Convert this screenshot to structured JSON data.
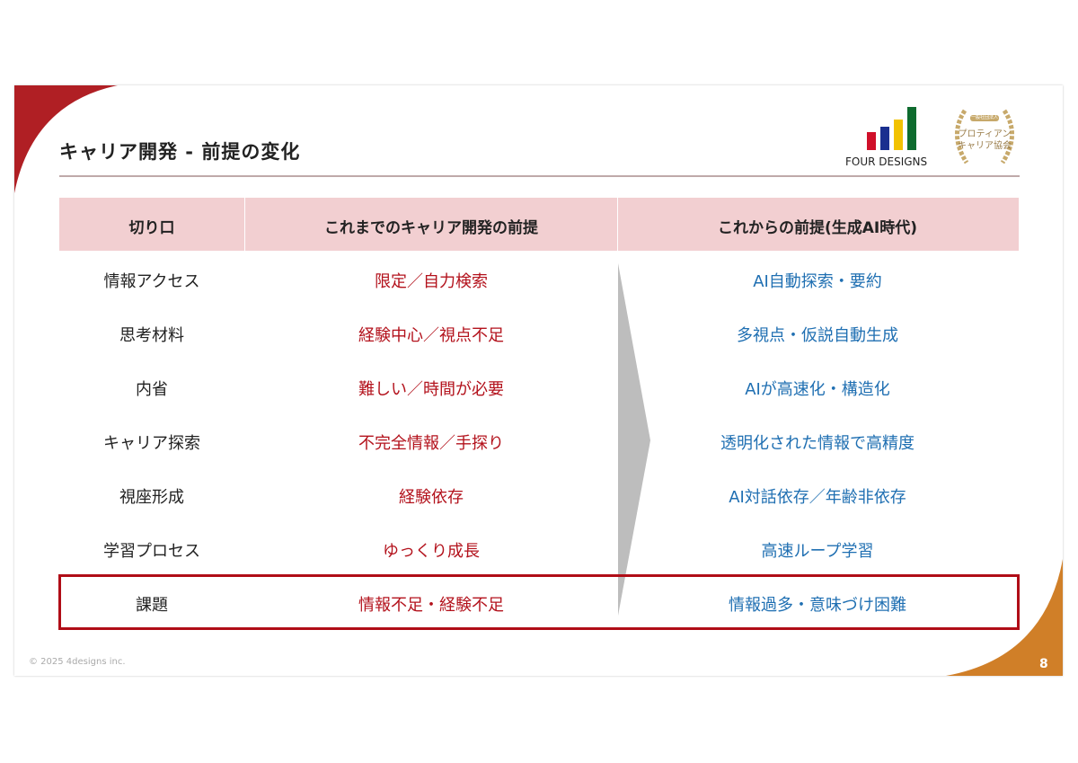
{
  "header": {
    "title": "キャリア開発 - 前提の変化"
  },
  "logo": {
    "text": "FOUR DESIGNS",
    "bar_colors": [
      "#d0102a",
      "#1a2f8f",
      "#f2c200",
      "#0e6b2e"
    ]
  },
  "emblem": {
    "ribbon": "一般社団法人",
    "line1": "プロティアン",
    "line2": "キャリア協会"
  },
  "table": {
    "columns": [
      "切り口",
      "これまでのキャリア開発の前提",
      "これからの前提(生成AI時代)"
    ],
    "rows": [
      [
        "情報アクセス",
        "限定／自力検索",
        "AI自動探索・要約"
      ],
      [
        "思考材料",
        "経験中心／視点不足",
        "多視点・仮説自動生成"
      ],
      [
        "内省",
        "難しい／時間が必要",
        "AIが高速化・構造化"
      ],
      [
        "キャリア探索",
        "不完全情報／手探り",
        "透明化された情報で高精度"
      ],
      [
        "視座形成",
        "経験依存",
        "AI対話依存／年齢非依存"
      ],
      [
        "学習プロセス",
        "ゆっくり成長",
        "高速ループ学習"
      ],
      [
        "課題",
        "情報不足・経験不足",
        "情報過多・意味づけ困難"
      ]
    ],
    "highlighted_row": "課題"
  },
  "colors": {
    "accent_red": "#b01f24",
    "accent_orange": "#d07f28",
    "old_text": "#b3121c",
    "new_text": "#1f6fb2",
    "header_bg": "#f2cfd1"
  },
  "footer": {
    "copyright": "© 2025 4designs inc.",
    "page": "8"
  }
}
